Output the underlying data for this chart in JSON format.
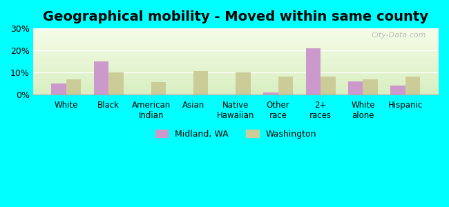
{
  "title": "Geographical mobility - Moved within same county",
  "categories": [
    "White",
    "Black",
    "American\nIndian",
    "Asian",
    "Native\nHawaiian",
    "Other\nrace",
    "2+\nraces",
    "White\nalone",
    "Hispanic"
  ],
  "midland_values": [
    5,
    15,
    0,
    0,
    0,
    1,
    21,
    6,
    4
  ],
  "washington_values": [
    7,
    10,
    5.5,
    10.5,
    10,
    8,
    8,
    7,
    8
  ],
  "midland_color": "#cc99cc",
  "washington_color": "#cccc99",
  "background_color": "#00ffff",
  "grad_top": "#f5fce8",
  "grad_bottom": "#d8eec0",
  "ylim": [
    0,
    30
  ],
  "yticks": [
    0,
    10,
    20,
    30
  ],
  "ytick_labels": [
    "0%",
    "10%",
    "20%",
    "30%"
  ],
  "legend_midland": "Midland, WA",
  "legend_washington": "Washington",
  "bar_width": 0.35,
  "title_fontsize": 14,
  "watermark": "City-Data.com"
}
